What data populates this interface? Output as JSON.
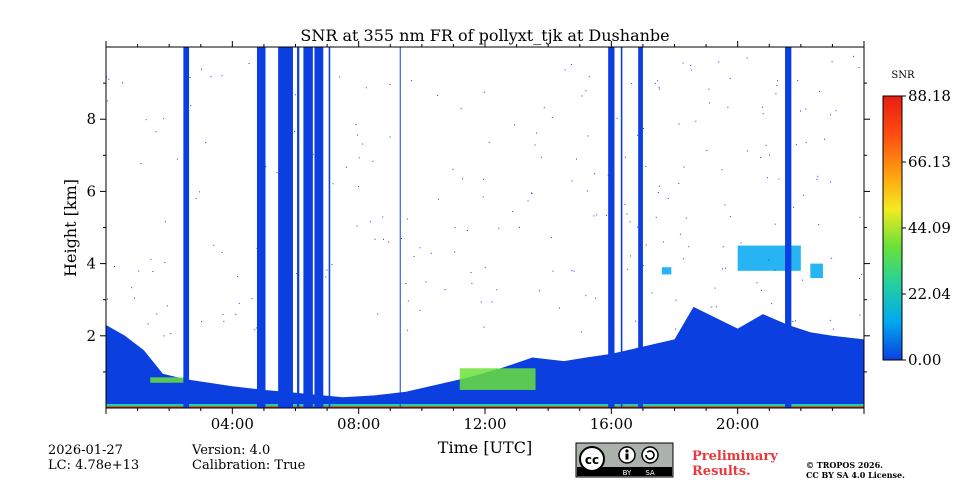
{
  "chart_data": {
    "type": "heatmap",
    "title": "SNR at 355 nm FR of pollyxt_tjk at Dushanbe",
    "xlabel": "Time [UTC]",
    "ylabel": "Height [km]",
    "xlim": [
      0,
      24
    ],
    "ylim": [
      0,
      10
    ],
    "x_ticks": [
      {
        "value": 4,
        "label": "04:00"
      },
      {
        "value": 8,
        "label": "08:00"
      },
      {
        "value": 12,
        "label": "12:00"
      },
      {
        "value": 16,
        "label": "16:00"
      },
      {
        "value": 20,
        "label": "20:00"
      }
    ],
    "y_ticks": [
      {
        "value": 2,
        "label": "2"
      },
      {
        "value": 4,
        "label": "4"
      },
      {
        "value": 6,
        "label": "6"
      },
      {
        "value": 8,
        "label": "8"
      }
    ],
    "colorbar": {
      "label": "SNR",
      "range": [
        0,
        88.18
      ],
      "ticks": [
        {
          "value": 0.0,
          "label": "0.00"
        },
        {
          "value": 22.04,
          "label": "22.04"
        },
        {
          "value": 44.09,
          "label": "44.09"
        },
        {
          "value": 66.13,
          "label": "66.13"
        },
        {
          "value": 88.18,
          "label": "88.18"
        }
      ],
      "colors": [
        "#0b3fe0",
        "#00a8f0",
        "#22d0a0",
        "#6ae03a",
        "#f4ea20",
        "#ff9a10",
        "#ff4a10",
        "#e81e10"
      ]
    },
    "profile": [
      {
        "t": 0.0,
        "h": 2.3
      },
      {
        "t": 0.6,
        "h": 2.0
      },
      {
        "t": 1.2,
        "h": 1.6
      },
      {
        "t": 1.8,
        "h": 0.95
      },
      {
        "t": 2.5,
        "h": 0.8
      },
      {
        "t": 4.0,
        "h": 0.6
      },
      {
        "t": 5.0,
        "h": 0.5
      },
      {
        "t": 6.0,
        "h": 0.42
      },
      {
        "t": 7.5,
        "h": 0.3
      },
      {
        "t": 8.5,
        "h": 0.35
      },
      {
        "t": 9.5,
        "h": 0.45
      },
      {
        "t": 10.5,
        "h": 0.65
      },
      {
        "t": 11.5,
        "h": 0.85
      },
      {
        "t": 12.5,
        "h": 1.1
      },
      {
        "t": 13.5,
        "h": 1.4
      },
      {
        "t": 14.5,
        "h": 1.3
      },
      {
        "t": 15.2,
        "h": 1.4
      },
      {
        "t": 16.0,
        "h": 1.5
      },
      {
        "t": 17.0,
        "h": 1.7
      },
      {
        "t": 18.0,
        "h": 1.9
      },
      {
        "t": 18.6,
        "h": 2.8
      },
      {
        "t": 19.3,
        "h": 2.5
      },
      {
        "t": 20.0,
        "h": 2.2
      },
      {
        "t": 20.8,
        "h": 2.6
      },
      {
        "t": 21.6,
        "h": 2.3
      },
      {
        "t": 22.3,
        "h": 2.1
      },
      {
        "t": 23.0,
        "h": 2.0
      },
      {
        "t": 24.0,
        "h": 1.9
      }
    ],
    "layers": [
      {
        "t0": 1.4,
        "t1": 2.6,
        "h0": 0.7,
        "h1": 0.85,
        "snr": 40
      },
      {
        "t0": 11.2,
        "t1": 13.6,
        "h0": 0.5,
        "h1": 1.1,
        "snr": 35
      },
      {
        "t0": 20.0,
        "t1": 22.0,
        "h0": 3.8,
        "h1": 4.5,
        "snr": 10
      },
      {
        "t0": 17.6,
        "t1": 17.9,
        "h0": 3.7,
        "h1": 3.9,
        "snr": 8
      },
      {
        "t0": 22.3,
        "t1": 22.7,
        "h0": 3.6,
        "h1": 4.0,
        "snr": 8
      }
    ],
    "gaps": [
      {
        "t0": 2.45,
        "t1": 2.63
      },
      {
        "t0": 4.78,
        "t1": 5.05
      },
      {
        "t0": 5.45,
        "t1": 5.92
      },
      {
        "t0": 6.05,
        "t1": 6.12
      },
      {
        "t0": 6.25,
        "t1": 6.55
      },
      {
        "t0": 6.6,
        "t1": 6.88
      },
      {
        "t0": 7.05,
        "t1": 7.1
      },
      {
        "t0": 9.3,
        "t1": 9.33
      },
      {
        "t0": 15.9,
        "t1": 16.1
      },
      {
        "t0": 16.3,
        "t1": 16.35
      },
      {
        "t0": 16.85,
        "t1": 17.0
      },
      {
        "t0": 21.5,
        "t1": 21.7
      }
    ]
  },
  "footer": {
    "date": "2026-01-27",
    "lc": "LC: 4.78e+13",
    "version": "Version: 4.0",
    "calibration": "Calibration: True",
    "preliminary_line1": "Preliminary",
    "preliminary_line2": "Results.",
    "copyright_line1": "© TROPOS 2026.",
    "copyright_line2": "CC BY SA 4.0 License.",
    "license_badge": {
      "cc": "cc",
      "by": "BY",
      "sa": "SA"
    }
  },
  "colors": {
    "background": "#ffffff",
    "low_snr": "#0b3fe0",
    "preliminary_text": "#e8383d",
    "badge_bg": "#aab2ab"
  }
}
